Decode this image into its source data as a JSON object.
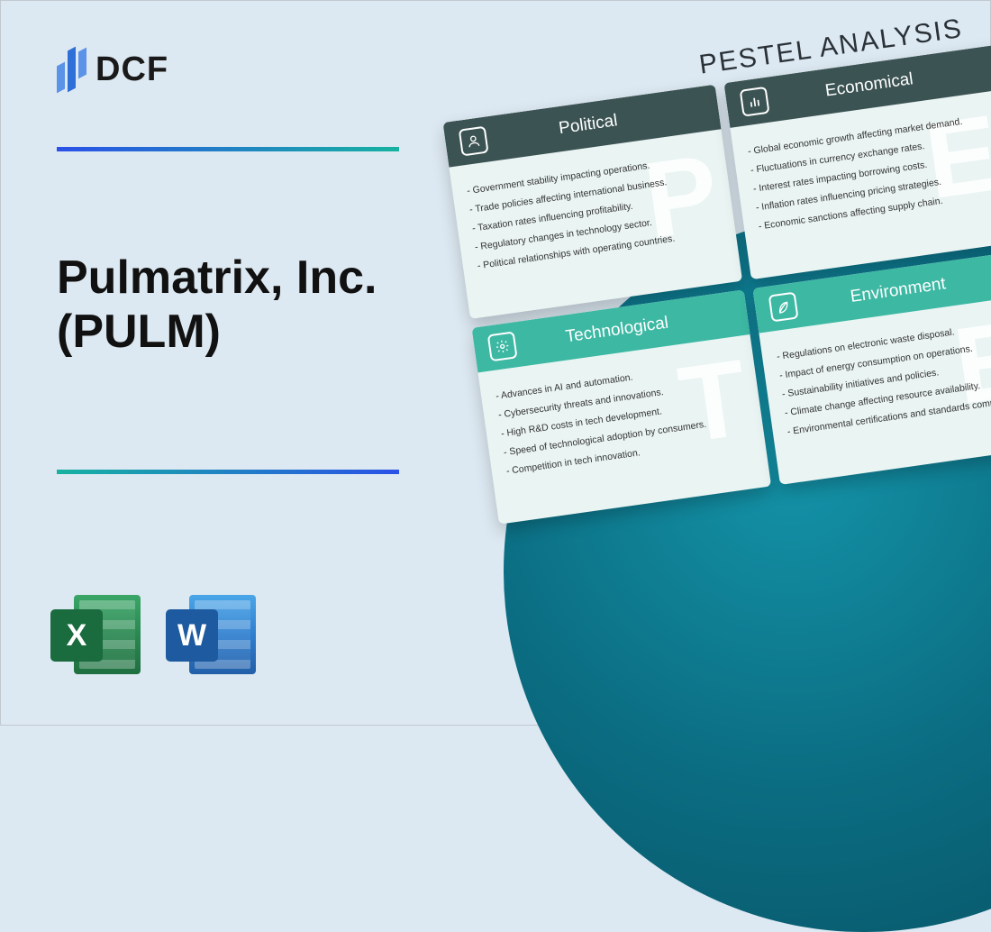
{
  "brand": {
    "name": "DCF"
  },
  "title_line1": "Pulmatrix, Inc.",
  "title_line2": "(PULM)",
  "file_icons": {
    "excel_letter": "X",
    "word_letter": "W"
  },
  "pestel": {
    "heading": "PESTEL ANALYSIS",
    "cards": [
      {
        "tone": "dark",
        "letter": "P",
        "title": "Political",
        "icon": "person",
        "items": [
          "Government stability impacting operations.",
          "Trade policies affecting international business.",
          "Taxation rates influencing profitability.",
          "Regulatory changes in technology sector.",
          "Political relationships with operating countries."
        ]
      },
      {
        "tone": "dark",
        "letter": "E",
        "title": "Economical",
        "icon": "bars",
        "items": [
          "Global economic growth affecting market demand.",
          "Fluctuations in currency exchange rates.",
          "Interest rates impacting borrowing costs.",
          "Inflation rates influencing pricing strategies.",
          "Economic sanctions affecting supply chain."
        ]
      },
      {
        "tone": "light",
        "letter": "T",
        "title": "Technological",
        "icon": "gear",
        "items": [
          "Advances in AI and automation.",
          "Cybersecurity threats and innovations.",
          "High R&D costs in tech development.",
          "Speed of technological adoption by consumers.",
          "Competition in tech innovation."
        ]
      },
      {
        "tone": "light",
        "letter": "E",
        "title": "Environment",
        "icon": "leaf",
        "items": [
          "Regulations on electronic waste disposal.",
          "Impact of energy consumption on operations.",
          "Sustainability initiatives and policies.",
          "Climate change affecting resource availability.",
          "Environmental certifications and standards compliance."
        ]
      }
    ]
  },
  "colors": {
    "page_bg": "#dde9f2",
    "circle_inner": "#1493a8",
    "circle_outer": "#075062",
    "rule_grad_a": "#2a51e8",
    "rule_grad_b": "#17b2a1",
    "pcard_dark_head": "#3c5353",
    "pcard_light_head": "#3cb8a3",
    "pcard_body": "#eaf4f3"
  }
}
